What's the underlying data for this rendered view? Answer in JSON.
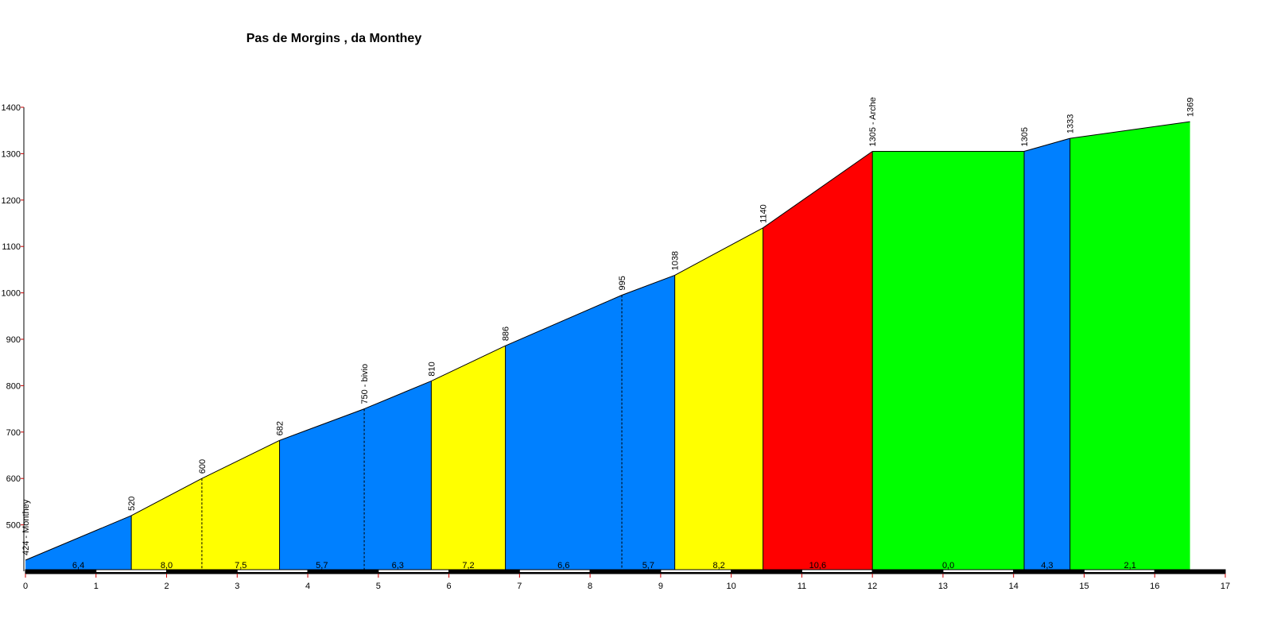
{
  "chart_data": {
    "type": "profile",
    "title": "Pas de Morgins , da Monthey",
    "x": [
      0,
      1.5,
      2.5,
      3.6,
      4.8,
      5.75,
      6.8,
      8.45,
      9.2,
      10.45,
      12.0,
      14.15,
      14.8,
      16.5
    ],
    "values": [
      424,
      520,
      600,
      682,
      750,
      810,
      886,
      995,
      1038,
      1140,
      1305,
      1305,
      1333,
      1369
    ],
    "value_labels": [
      "424 - Monthey",
      "520",
      "600",
      "682",
      "750 - bivio",
      "810",
      "886",
      "995",
      "1038",
      "1140",
      "1305 - Arche",
      "1305",
      "1333",
      "1369"
    ],
    "segments": {
      "gradients": [
        6.4,
        8.0,
        7.5,
        5.7,
        6.3,
        7.2,
        6.6,
        5.7,
        8.2,
        10.6,
        0.0,
        4.3,
        2.1
      ],
      "gradient_labels": [
        "6,4",
        "8,0",
        "7,5",
        "5,7",
        "6,3",
        "7,2",
        "6,6",
        "5,7",
        "8,2",
        "10,6",
        "0,0",
        "4,3",
        "2,1"
      ],
      "colors": [
        "#0080ff",
        "#ffff00",
        "#ffff00",
        "#0080ff",
        "#0080ff",
        "#ffff00",
        "#0080ff",
        "#0080ff",
        "#ffff00",
        "#ff0000",
        "#00ff00",
        "#0080ff",
        "#00ff00"
      ]
    },
    "xlim": [
      0,
      17
    ],
    "xticks": [
      0,
      1,
      2,
      3,
      4,
      5,
      6,
      7,
      8,
      9,
      10,
      11,
      12,
      13,
      14,
      15,
      16,
      17
    ],
    "ylim": [
      400,
      1400
    ],
    "yticks": [
      500,
      600,
      700,
      800,
      900,
      1000,
      1100,
      1200,
      1300,
      1400
    ]
  }
}
